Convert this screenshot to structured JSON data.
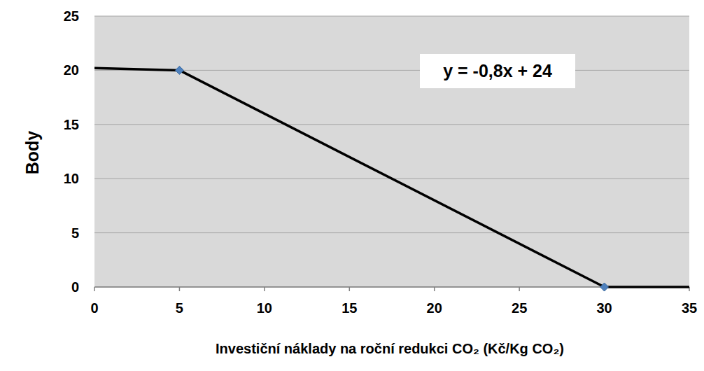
{
  "chart_data": {
    "type": "line",
    "x_label": "Investiční náklady na roční redukci CO₂ (Kč/Kg CO₂)",
    "y_label": "Body",
    "annotations": [
      {
        "text": "y = -0,8x + 24"
      }
    ],
    "series": [
      {
        "type": "line",
        "color": "#000000",
        "marker": "none",
        "x": [
          0,
          5,
          30,
          35
        ],
        "values": [
          20.2,
          20,
          0,
          0
        ]
      },
      {
        "type": "scatter",
        "color": "#4f81bd",
        "marker": "diamond",
        "x": [
          5,
          30
        ],
        "values": [
          20,
          0
        ]
      }
    ],
    "xlim": [
      0,
      35
    ],
    "xticks": [
      0,
      5,
      10,
      15,
      20,
      25,
      30,
      35
    ],
    "ylim": [
      0,
      25
    ],
    "yticks": [
      0,
      5,
      10,
      15,
      20,
      25
    ],
    "grid": true
  }
}
